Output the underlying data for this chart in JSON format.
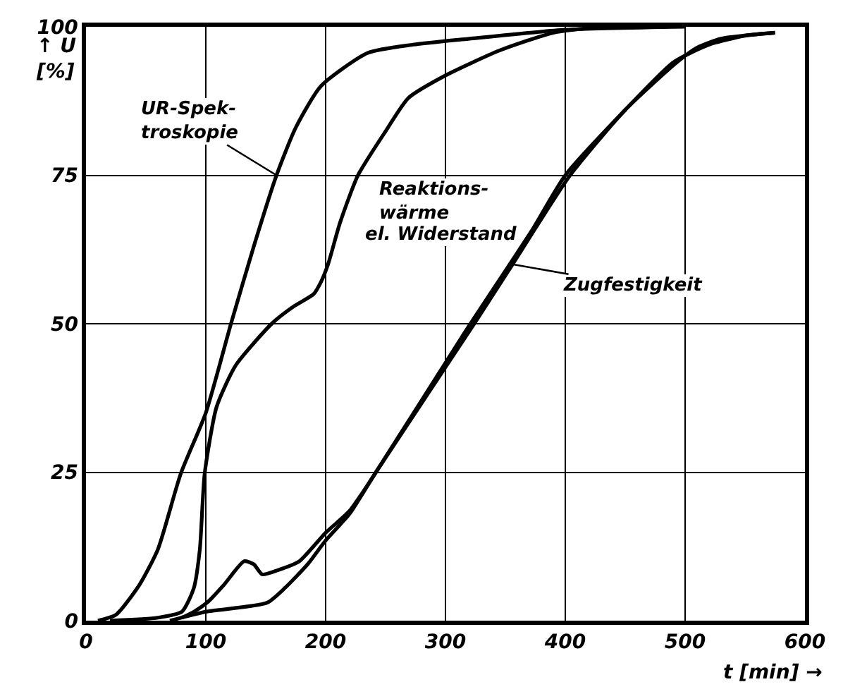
{
  "chart_data": {
    "type": "line",
    "xlabel": "t [min] →",
    "ylabel": "↑ U\n[%]",
    "xlim": [
      0,
      600
    ],
    "xticks": [
      0,
      100,
      200,
      300,
      400,
      500,
      600
    ],
    "ylim": [
      0,
      100
    ],
    "yticks": [
      0,
      25,
      50,
      75,
      100
    ],
    "grid": true,
    "legend": false,
    "marker": "none",
    "line_style": "solid",
    "series": [
      {
        "name": "UR-Spek-\ntroskopie",
        "color": "#000000",
        "x": [
          10,
          25,
          44.5,
          60,
          79,
          100,
          121,
          140,
          159,
          175,
          196,
          235,
          273,
          320,
          400,
          500
        ],
        "values": [
          0,
          1,
          6,
          12,
          24.7,
          35,
          50,
          63,
          75,
          83,
          90,
          95.6,
          97,
          98,
          99.5,
          100
        ]
      },
      {
        "name": "Reaktions-\nwärme",
        "color": "#000000",
        "x": [
          20,
          60,
          80,
          90,
          95,
          99,
          109,
          125,
          155,
          174,
          190,
          196,
          202,
          212,
          227,
          250,
          269,
          299,
          345,
          390,
          430
        ],
        "values": [
          0,
          0.5,
          1.5,
          5.5,
          12,
          24.7,
          36,
          43,
          50,
          53,
          55,
          57,
          60,
          67,
          75,
          82.4,
          88,
          91.7,
          96,
          99,
          100
        ]
      },
      {
        "name": "el. Widerstand",
        "color": "#000000",
        "x": [
          80,
          90,
          102,
          115,
          132,
          140,
          147,
          160,
          178,
          200,
          220,
          242,
          316,
          373,
          400,
          450,
          490,
          520,
          550,
          575
        ],
        "values": [
          0.5,
          1.5,
          3.2,
          6,
          10,
          9.5,
          7.8,
          8.5,
          10,
          14.8,
          18.5,
          25,
          48.5,
          66,
          75,
          86,
          94,
          97,
          98.5,
          99
        ]
      },
      {
        "name": "Zugfestigkeit",
        "color": "#000000",
        "x": [
          70,
          100,
          151,
          166,
          185,
          200,
          220,
          242,
          324,
          356,
          404,
          450,
          493,
          510,
          530,
          575
        ],
        "values": [
          0,
          1.5,
          3,
          5.5,
          9.5,
          13.5,
          18,
          25,
          50,
          60,
          75,
          86,
          94,
          96.5,
          98,
          99
        ]
      }
    ]
  }
}
